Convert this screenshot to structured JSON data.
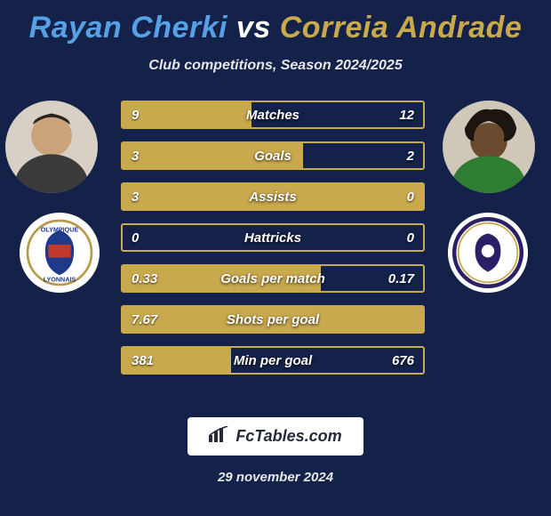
{
  "colors": {
    "background": "#14224a",
    "title_p1": "#56a0e6",
    "title_vs": "#ffffff",
    "title_p2": "#c9a94d",
    "row_border": "#c9a94d",
    "row_fill": "#c9a94d",
    "text_light": "#e6e6e6"
  },
  "title": {
    "player1": "Rayan Cherki",
    "vs": "vs",
    "player2": "Correia Andrade"
  },
  "subtitle": "Club competitions, Season 2024/2025",
  "avatars": {
    "player1_name": "player1-avatar",
    "player2_name": "player2-avatar",
    "club1_name": "club1-badge",
    "club2_name": "club2-badge"
  },
  "rows": [
    {
      "label": "Matches",
      "left": "9",
      "right": "12",
      "fill_pct": 43
    },
    {
      "label": "Goals",
      "left": "3",
      "right": "2",
      "fill_pct": 60
    },
    {
      "label": "Assists",
      "left": "3",
      "right": "0",
      "fill_pct": 100
    },
    {
      "label": "Hattricks",
      "left": "0",
      "right": "0",
      "fill_pct": 0
    },
    {
      "label": "Goals per match",
      "left": "0.33",
      "right": "0.17",
      "fill_pct": 66
    },
    {
      "label": "Shots per goal",
      "left": "7.67",
      "right": "",
      "fill_pct": 100
    },
    {
      "label": "Min per goal",
      "left": "381",
      "right": "676",
      "fill_pct": 36
    }
  ],
  "footer": {
    "brand": "FcTables.com",
    "date": "29 november 2024"
  }
}
